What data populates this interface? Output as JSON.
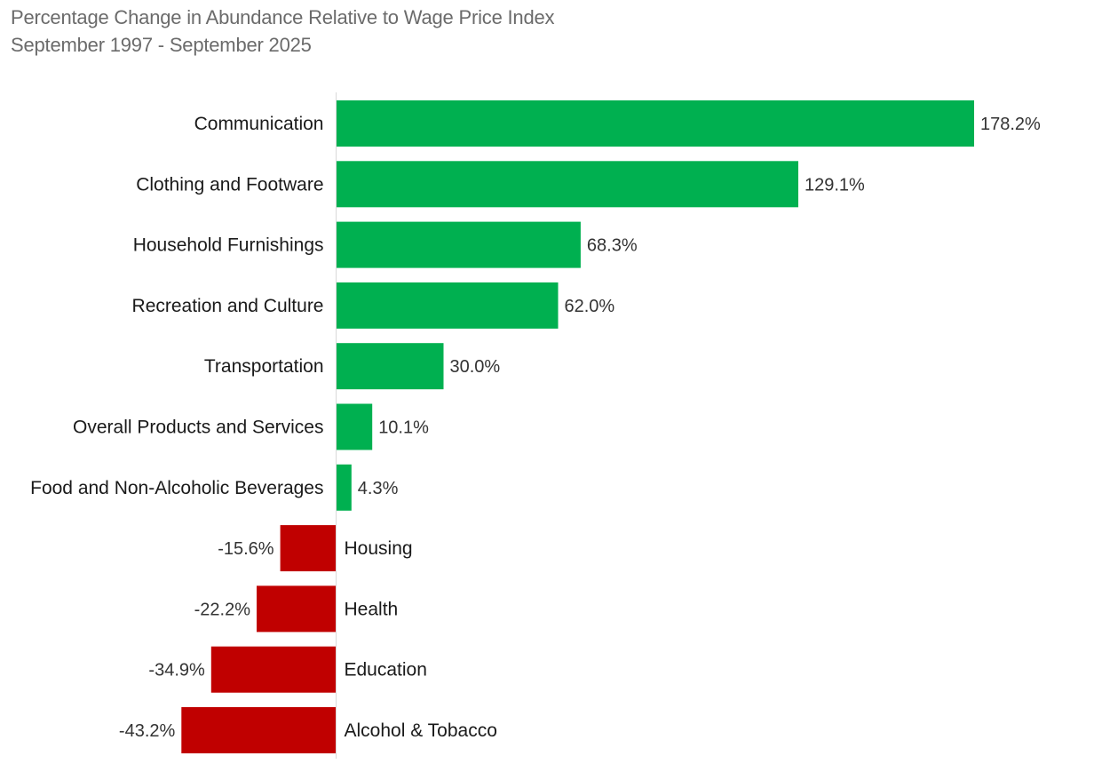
{
  "chart_data": {
    "type": "bar",
    "orientation": "horizontal",
    "title": "Percentage Change in Abundance Relative to Wage Price Index",
    "subtitle": "September 1997 - September 2025",
    "categories": [
      "Communication",
      "Clothing and Footware",
      "Household Furnishings",
      "Recreation and Culture",
      "Transportation",
      "Overall Products and Services",
      "Food and Non-Alcoholic Beverages",
      "Housing",
      "Health",
      "Education",
      "Alcohol & Tobacco"
    ],
    "values": [
      178.2,
      129.1,
      68.3,
      62.0,
      30.0,
      10.1,
      4.3,
      -15.6,
      -22.2,
      -34.9,
      -43.2
    ],
    "value_labels": [
      "178.2%",
      "129.1%",
      "68.3%",
      "62.0%",
      "30.0%",
      "10.1%",
      "4.3%",
      "-15.6%",
      "-22.2%",
      "-34.9%",
      "-43.2%"
    ],
    "xlim": [
      -43.2,
      178.2
    ],
    "xlabel": "",
    "ylabel": "",
    "grid": false,
    "legend": "none",
    "colors": {
      "positive": "#00b050",
      "negative": "#c00000",
      "axis": "#d9d9d9"
    }
  }
}
